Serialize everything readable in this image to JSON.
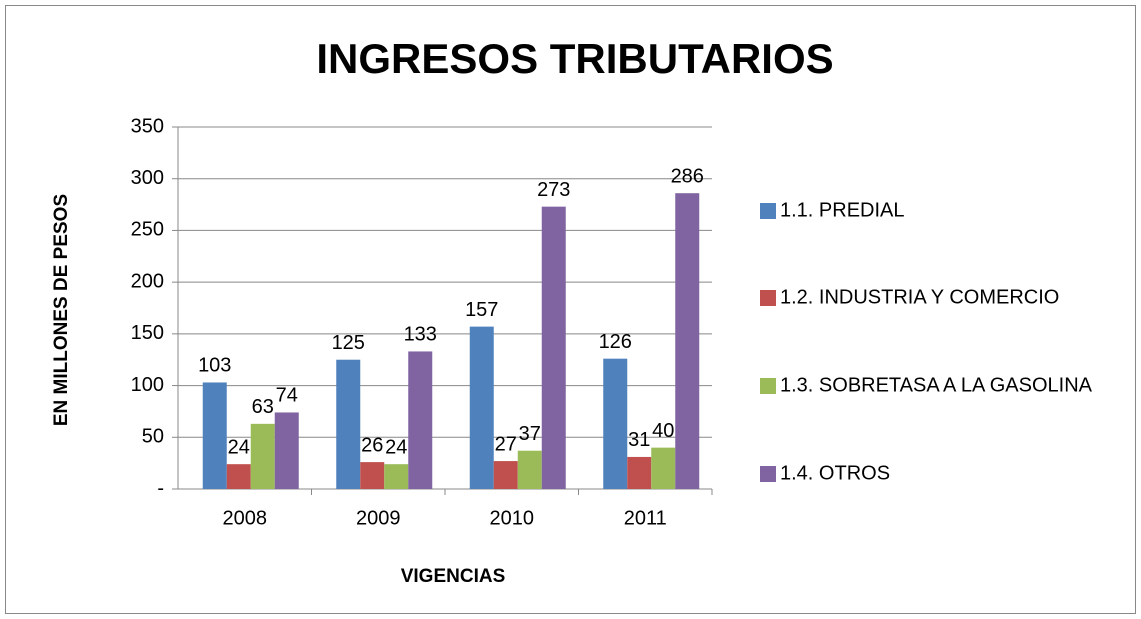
{
  "chart_data": {
    "type": "bar",
    "title": "INGRESOS TRIBUTARIOS",
    "x_label": "VIGENCIAS",
    "y_label": "EN MILLONES DE PESOS",
    "categories": [
      "2008",
      "2009",
      "2010",
      "2011"
    ],
    "series": [
      {
        "name": "1.1. PREDIAL",
        "color": "#4f81bd",
        "values": [
          103,
          125,
          157,
          126
        ]
      },
      {
        "name": "1.2. INDUSTRIA  Y COMERCIO",
        "color": "#c0504d",
        "values": [
          24,
          26,
          27,
          31
        ]
      },
      {
        "name": "1.3. SOBRETASA A LA GASOLINA",
        "color": "#9bbb59",
        "values": [
          63,
          24,
          37,
          40
        ]
      },
      {
        "name": "1.4. OTROS",
        "color": "#8064a2",
        "values": [
          74,
          133,
          273,
          286
        ]
      }
    ],
    "ylim": [
      0,
      350
    ],
    "yticks": [
      {
        "value": 0,
        "label": "-"
      },
      50,
      100,
      150,
      200,
      250,
      300,
      350
    ],
    "grid": true,
    "legend": "right"
  }
}
